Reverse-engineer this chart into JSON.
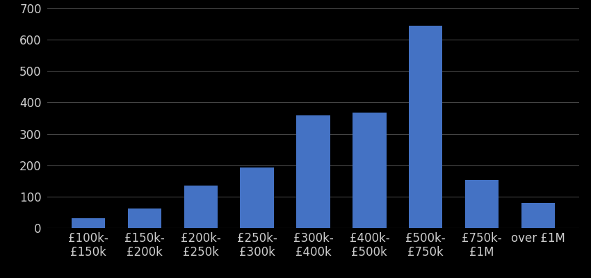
{
  "categories": [
    "£100k-\n£150k",
    "£150k-\n£200k",
    "£200k-\n£250k",
    "£250k-\n£300k",
    "£300k-\n£400k",
    "£400k-\n£500k",
    "£500k-\n£750k",
    "£750k-\n£1M",
    "over £1M"
  ],
  "values": [
    30,
    62,
    135,
    193,
    358,
    368,
    645,
    153,
    80
  ],
  "bar_color": "#4472C4",
  "background_color": "#000000",
  "text_color": "#cccccc",
  "grid_color": "#444444",
  "ylim": [
    0,
    700
  ],
  "yticks": [
    0,
    100,
    200,
    300,
    400,
    500,
    600,
    700
  ],
  "tick_fontsize": 12,
  "bar_width": 0.6
}
